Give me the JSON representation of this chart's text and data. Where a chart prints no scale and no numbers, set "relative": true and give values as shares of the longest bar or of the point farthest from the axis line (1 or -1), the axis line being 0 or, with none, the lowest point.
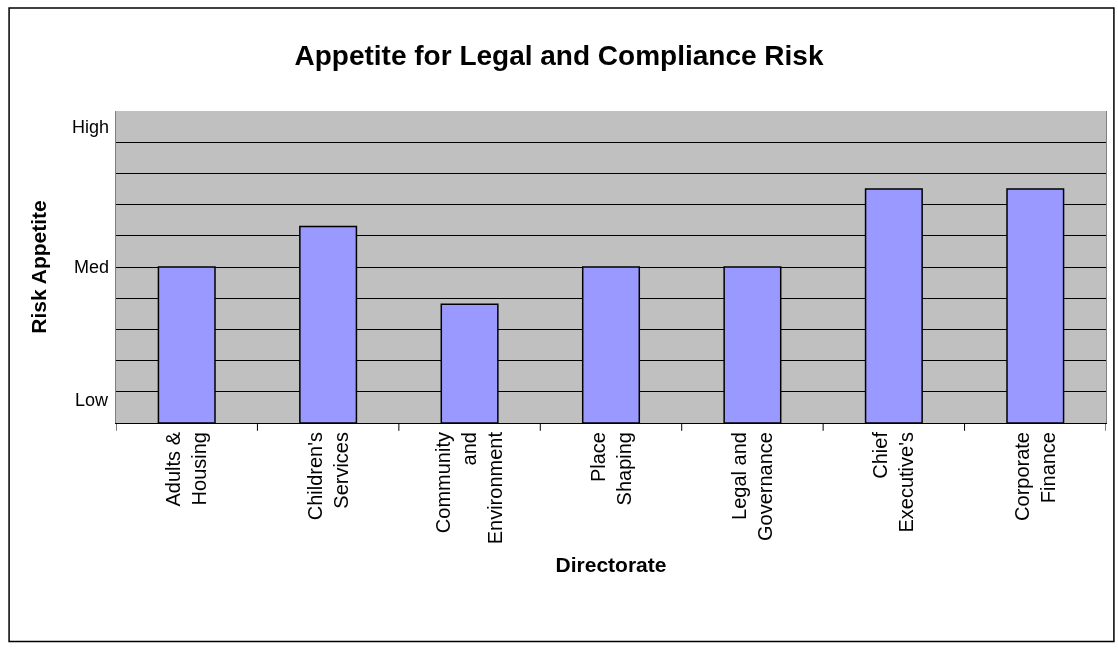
{
  "chart_data": {
    "type": "bar",
    "title": "Appetite for Legal and Compliance Risk",
    "xlabel": "Directorate",
    "ylabel": "Risk Appetite",
    "categories": [
      "Adults &\nHousing",
      "Children's\nServices",
      "Community\nand\nEnvironment",
      "Place\nShaping",
      "Legal and\nGovernance",
      "Chief\nExecutive's",
      "Corporate\nFinance"
    ],
    "values": [
      0.667,
      0.84,
      0.507,
      0.667,
      0.667,
      1,
      1
    ],
    "relative": true,
    "color": "#9999ff",
    "annotations": [
      "Low",
      "Med",
      "High"
    ],
    "grid": "y"
  }
}
